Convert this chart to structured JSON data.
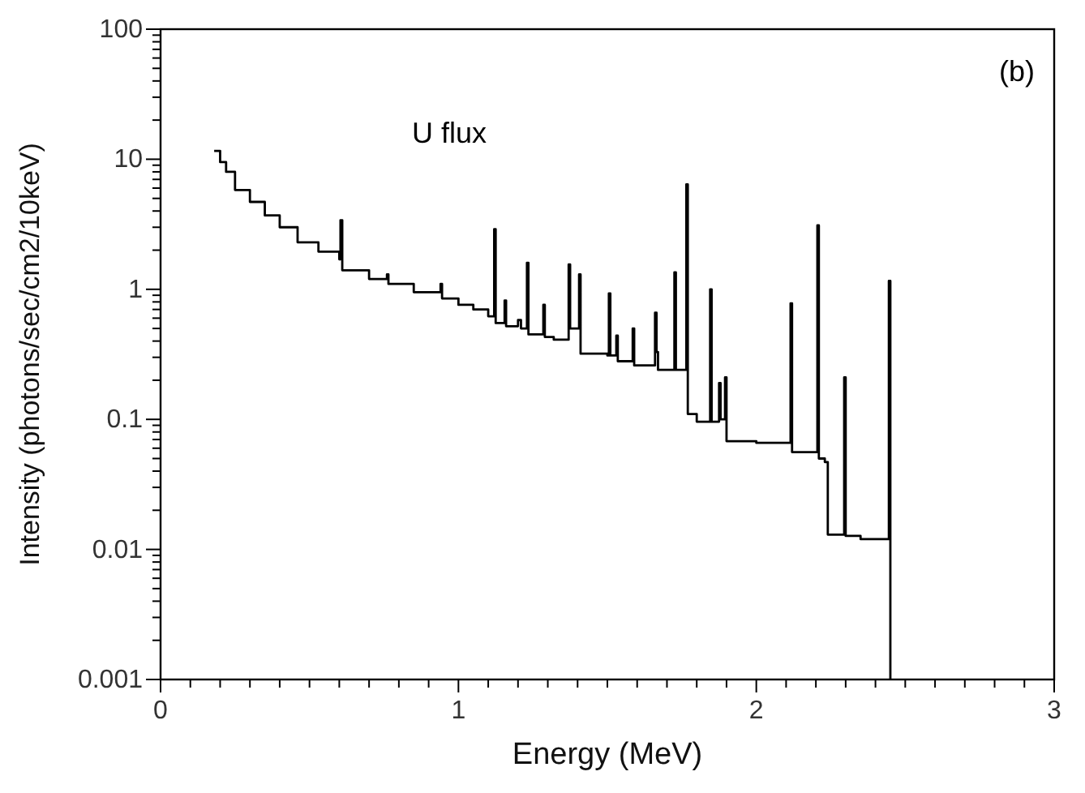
{
  "chart_data": {
    "type": "step",
    "xlabel": "Energy (MeV)",
    "ylabel": "Intensity (photons/sec/cm2/10keV)",
    "annotations": [
      "(b)",
      "U flux"
    ],
    "log": "y",
    "grid": false,
    "xlim": [
      0,
      3
    ],
    "ylim": [
      0.001,
      100
    ],
    "xticks": [
      0,
      {
        "value": 0.1,
        "label": null
      },
      {
        "value": 0.2,
        "label": null
      },
      {
        "value": 0.3,
        "label": null
      },
      {
        "value": 0.4,
        "label": null
      },
      {
        "value": 0.5,
        "label": null
      },
      {
        "value": 0.6,
        "label": null
      },
      {
        "value": 0.7,
        "label": null
      },
      {
        "value": 0.8,
        "label": null
      },
      {
        "value": 0.9,
        "label": null
      },
      1,
      {
        "value": 1.1,
        "label": null
      },
      {
        "value": 1.2,
        "label": null
      },
      {
        "value": 1.3,
        "label": null
      },
      {
        "value": 1.4,
        "label": null
      },
      {
        "value": 1.5,
        "label": null
      },
      {
        "value": 1.6,
        "label": null
      },
      {
        "value": 1.7,
        "label": null
      },
      {
        "value": 1.8,
        "label": null
      },
      {
        "value": 1.9,
        "label": null
      },
      2,
      {
        "value": 2.1,
        "label": null
      },
      {
        "value": 2.2,
        "label": null
      },
      {
        "value": 2.3,
        "label": null
      },
      {
        "value": 2.4,
        "label": null
      },
      {
        "value": 2.5,
        "label": null
      },
      {
        "value": 2.6,
        "label": null
      },
      {
        "value": 2.7,
        "label": null
      },
      {
        "value": 2.8,
        "label": null
      },
      {
        "value": 2.9,
        "label": null
      },
      3
    ],
    "yticks": [
      0.001,
      {
        "value": 0.002,
        "label": null
      },
      {
        "value": 0.003,
        "label": null
      },
      {
        "value": 0.004,
        "label": null
      },
      {
        "value": 0.005,
        "label": null
      },
      {
        "value": 0.006,
        "label": null
      },
      {
        "value": 0.007,
        "label": null
      },
      {
        "value": 0.008,
        "label": null
      },
      {
        "value": 0.009,
        "label": null
      },
      0.01,
      {
        "value": 0.02,
        "label": null
      },
      {
        "value": 0.03,
        "label": null
      },
      {
        "value": 0.04,
        "label": null
      },
      {
        "value": 0.05,
        "label": null
      },
      {
        "value": 0.06,
        "label": null
      },
      {
        "value": 0.07,
        "label": null
      },
      {
        "value": 0.08,
        "label": null
      },
      {
        "value": 0.09,
        "label": null
      },
      0.1,
      {
        "value": 0.2,
        "label": null
      },
      {
        "value": 0.3,
        "label": null
      },
      {
        "value": 0.4,
        "label": null
      },
      {
        "value": 0.5,
        "label": null
      },
      {
        "value": 0.6,
        "label": null
      },
      {
        "value": 0.7,
        "label": null
      },
      {
        "value": 0.8,
        "label": null
      },
      {
        "value": 0.9,
        "label": null
      },
      1,
      {
        "value": 2,
        "label": null
      },
      {
        "value": 3,
        "label": null
      },
      {
        "value": 4,
        "label": null
      },
      {
        "value": 5,
        "label": null
      },
      {
        "value": 6,
        "label": null
      },
      {
        "value": 7,
        "label": null
      },
      {
        "value": 8,
        "label": null
      },
      {
        "value": 9,
        "label": null
      },
      10,
      {
        "value": 20,
        "label": null
      },
      {
        "value": 30,
        "label": null
      },
      {
        "value": 40,
        "label": null
      },
      {
        "value": 50,
        "label": null
      },
      {
        "value": 60,
        "label": null
      },
      {
        "value": 70,
        "label": null
      },
      {
        "value": 80,
        "label": null
      },
      {
        "value": 90,
        "label": null
      },
      100
    ],
    "series": [
      {
        "color": "#000000",
        "x": [
          0.18,
          0.2,
          0.22,
          0.25,
          0.3,
          0.35,
          0.4,
          0.46,
          0.53,
          0.6,
          0.604,
          0.61,
          0.7,
          0.76,
          0.765,
          0.85,
          0.94,
          0.945,
          1.0,
          1.05,
          1.1,
          1.12,
          1.125,
          1.155,
          1.16,
          1.2,
          1.21,
          1.23,
          1.235,
          1.285,
          1.29,
          1.32,
          1.37,
          1.375,
          1.405,
          1.41,
          1.5,
          1.505,
          1.51,
          1.53,
          1.535,
          1.585,
          1.59,
          1.66,
          1.665,
          1.67,
          1.725,
          1.73,
          1.765,
          1.77,
          1.8,
          1.845,
          1.85,
          1.875,
          1.88,
          1.895,
          1.9,
          2.0,
          2.115,
          2.12,
          2.205,
          2.21,
          2.23,
          2.24,
          2.295,
          2.3,
          2.35,
          2.445,
          2.45
        ],
        "values": [
          11.6,
          9.5,
          8,
          5.8,
          4.7,
          3.7,
          3.0,
          2.3,
          1.95,
          1.7,
          3.4,
          1.4,
          1.2,
          1.3,
          1.1,
          0.95,
          1.1,
          0.85,
          0.76,
          0.7,
          0.62,
          2.9,
          0.55,
          0.82,
          0.52,
          0.58,
          0.5,
          1.6,
          0.45,
          0.76,
          0.43,
          0.41,
          1.55,
          0.5,
          1.3,
          0.32,
          0.31,
          0.93,
          0.31,
          0.44,
          0.28,
          0.5,
          0.26,
          0.66,
          0.33,
          0.24,
          1.35,
          0.24,
          6.4,
          0.11,
          0.096,
          1.0,
          0.096,
          0.19,
          0.1,
          0.21,
          0.068,
          0.066,
          0.78,
          0.056,
          3.1,
          0.05,
          0.047,
          0.013,
          0.21,
          0.0127,
          0.012,
          1.16,
          0.001
        ]
      }
    ]
  }
}
